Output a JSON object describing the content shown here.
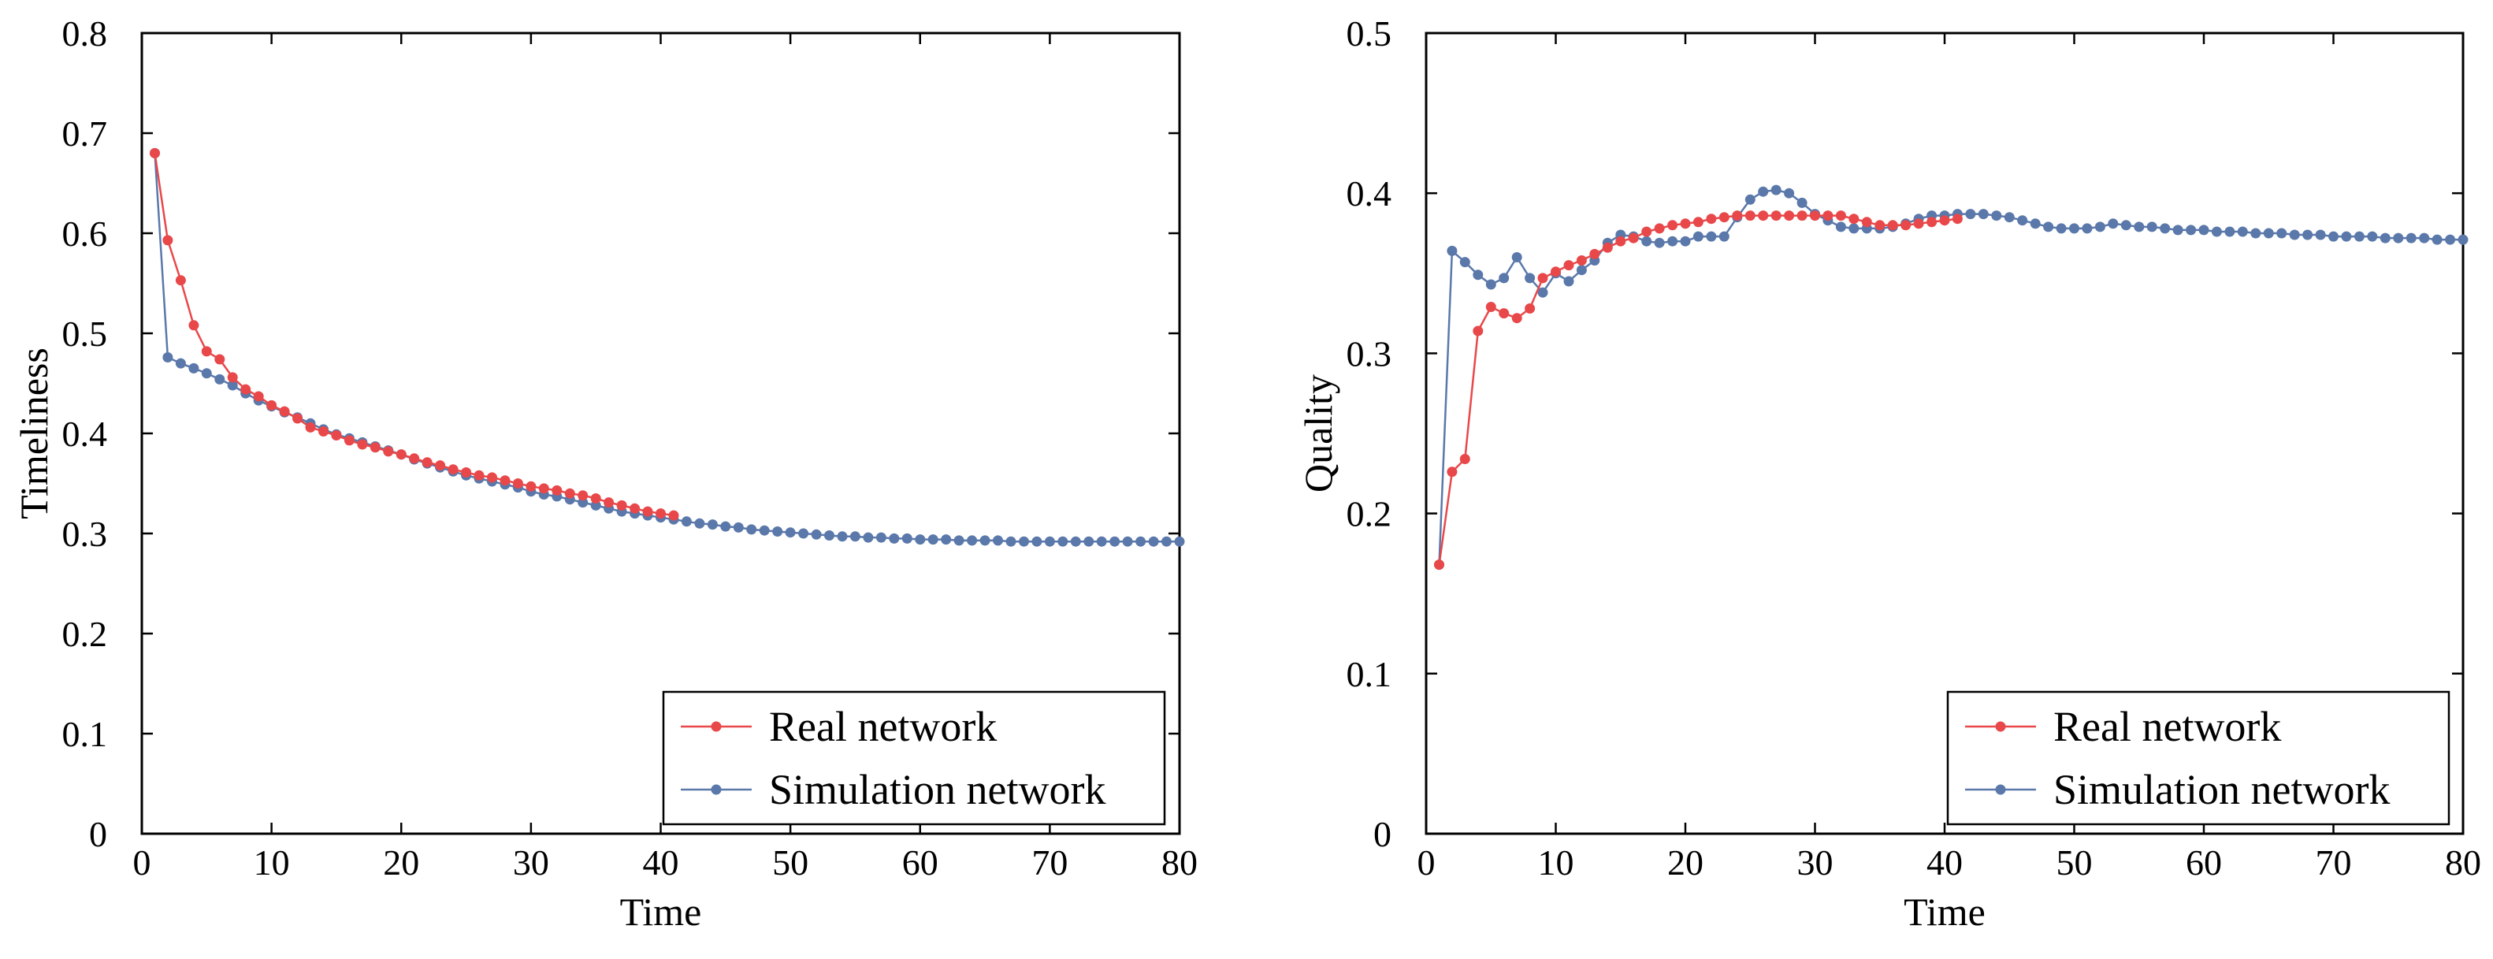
{
  "colors": {
    "real": "#e8484a",
    "simulation": "#5a78aa",
    "axis": "#000000",
    "background": "#ffffff"
  },
  "chart_data": [
    {
      "type": "line",
      "xlabel": "Time",
      "ylabel": "Timeliness",
      "xlim": [
        0,
        80
      ],
      "ylim": [
        0,
        0.8
      ],
      "xticks": [
        0,
        10,
        20,
        30,
        40,
        50,
        60,
        70,
        80
      ],
      "yticks": [
        0,
        0.1,
        0.2,
        0.3,
        0.4,
        0.5,
        0.6,
        0.7,
        0.8
      ],
      "xtick_labels": [
        "0",
        "10",
        "20",
        "30",
        "40",
        "50",
        "60",
        "70",
        "80"
      ],
      "ytick_labels": [
        "0",
        "0.1",
        "0.2",
        "0.3",
        "0.4",
        "0.5",
        "0.6",
        "0.7",
        "0.8"
      ],
      "legend_position": "bottom-right",
      "series": [
        {
          "name": "Real network",
          "color": "#e8484a",
          "x": [
            1,
            2,
            3,
            4,
            5,
            6,
            7,
            8,
            9,
            10,
            11,
            12,
            13,
            14,
            15,
            16,
            17,
            18,
            19,
            20,
            21,
            22,
            23,
            24,
            25,
            26,
            27,
            28,
            29,
            30,
            31,
            32,
            33,
            34,
            35,
            36,
            37,
            38,
            39,
            40,
            41
          ],
          "y": [
            0.68,
            0.593,
            0.553,
            0.508,
            0.482,
            0.474,
            0.456,
            0.444,
            0.437,
            0.428,
            0.422,
            0.415,
            0.406,
            0.402,
            0.398,
            0.393,
            0.389,
            0.386,
            0.382,
            0.379,
            0.375,
            0.371,
            0.368,
            0.364,
            0.361,
            0.358,
            0.356,
            0.353,
            0.35,
            0.347,
            0.345,
            0.343,
            0.34,
            0.338,
            0.335,
            0.331,
            0.328,
            0.325,
            0.322,
            0.32,
            0.318
          ]
        },
        {
          "name": "Simulation network",
          "color": "#5a78aa",
          "x": [
            1,
            2,
            3,
            4,
            5,
            6,
            7,
            8,
            9,
            10,
            11,
            12,
            13,
            14,
            15,
            16,
            17,
            18,
            19,
            20,
            21,
            22,
            23,
            24,
            25,
            26,
            27,
            28,
            29,
            30,
            31,
            32,
            33,
            34,
            35,
            36,
            37,
            38,
            39,
            40,
            41,
            42,
            43,
            44,
            45,
            46,
            47,
            48,
            49,
            50,
            51,
            52,
            53,
            54,
            55,
            56,
            57,
            58,
            59,
            60,
            61,
            62,
            63,
            64,
            65,
            66,
            67,
            68,
            69,
            70,
            71,
            72,
            73,
            74,
            75,
            76,
            77,
            78,
            79,
            80
          ],
          "y": [
            0.68,
            0.476,
            0.47,
            0.465,
            0.46,
            0.454,
            0.448,
            0.44,
            0.433,
            0.427,
            0.421,
            0.416,
            0.41,
            0.404,
            0.399,
            0.395,
            0.391,
            0.387,
            0.383,
            0.379,
            0.374,
            0.37,
            0.366,
            0.362,
            0.358,
            0.355,
            0.352,
            0.349,
            0.346,
            0.342,
            0.339,
            0.337,
            0.334,
            0.331,
            0.328,
            0.325,
            0.322,
            0.32,
            0.318,
            0.316,
            0.314,
            0.312,
            0.31,
            0.309,
            0.307,
            0.306,
            0.304,
            0.303,
            0.302,
            0.301,
            0.3,
            0.299,
            0.298,
            0.297,
            0.297,
            0.296,
            0.296,
            0.295,
            0.295,
            0.294,
            0.294,
            0.294,
            0.293,
            0.293,
            0.293,
            0.293,
            0.292,
            0.292,
            0.292,
            0.292,
            0.292,
            0.292,
            0.292,
            0.292,
            0.292,
            0.292,
            0.292,
            0.292,
            0.292,
            0.292
          ]
        }
      ]
    },
    {
      "type": "line",
      "xlabel": "Time",
      "ylabel": "Quality",
      "xlim": [
        0,
        80
      ],
      "ylim": [
        0,
        0.5
      ],
      "xticks": [
        0,
        10,
        20,
        30,
        40,
        50,
        60,
        70,
        80
      ],
      "yticks": [
        0,
        0.1,
        0.2,
        0.3,
        0.4,
        0.5
      ],
      "xtick_labels": [
        "0",
        "10",
        "20",
        "30",
        "40",
        "50",
        "60",
        "70",
        "80"
      ],
      "ytick_labels": [
        "0",
        "0.1",
        "0.2",
        "0.3",
        "0.4",
        "0.5"
      ],
      "legend_position": "bottom-right",
      "series": [
        {
          "name": "Real network",
          "color": "#e8484a",
          "x": [
            1,
            2,
            3,
            4,
            5,
            6,
            7,
            8,
            9,
            10,
            11,
            12,
            13,
            14,
            15,
            16,
            17,
            18,
            19,
            20,
            21,
            22,
            23,
            24,
            25,
            26,
            27,
            28,
            29,
            30,
            31,
            32,
            33,
            34,
            35,
            36,
            37,
            38,
            39,
            40,
            41
          ],
          "y": [
            0.168,
            0.226,
            0.234,
            0.314,
            0.329,
            0.325,
            0.322,
            0.328,
            0.347,
            0.351,
            0.355,
            0.358,
            0.362,
            0.366,
            0.37,
            0.372,
            0.376,
            0.378,
            0.38,
            0.381,
            0.382,
            0.384,
            0.385,
            0.386,
            0.386,
            0.386,
            0.386,
            0.386,
            0.386,
            0.386,
            0.386,
            0.386,
            0.384,
            0.382,
            0.38,
            0.38,
            0.38,
            0.381,
            0.382,
            0.383,
            0.384
          ]
        },
        {
          "name": "Simulation network",
          "color": "#5a78aa",
          "x": [
            1,
            2,
            3,
            4,
            5,
            6,
            7,
            8,
            9,
            10,
            11,
            12,
            13,
            14,
            15,
            16,
            17,
            18,
            19,
            20,
            21,
            22,
            23,
            24,
            25,
            26,
            27,
            28,
            29,
            30,
            31,
            32,
            33,
            34,
            35,
            36,
            37,
            38,
            39,
            40,
            41,
            42,
            43,
            44,
            45,
            46,
            47,
            48,
            49,
            50,
            51,
            52,
            53,
            54,
            55,
            56,
            57,
            58,
            59,
            60,
            61,
            62,
            63,
            64,
            65,
            66,
            67,
            68,
            69,
            70,
            71,
            72,
            73,
            74,
            75,
            76,
            77,
            78,
            79,
            80
          ],
          "y": [
            0.168,
            0.364,
            0.357,
            0.349,
            0.343,
            0.347,
            0.36,
            0.347,
            0.338,
            0.35,
            0.345,
            0.352,
            0.358,
            0.369,
            0.374,
            0.373,
            0.37,
            0.369,
            0.37,
            0.37,
            0.373,
            0.373,
            0.373,
            0.385,
            0.396,
            0.401,
            0.402,
            0.4,
            0.394,
            0.387,
            0.383,
            0.379,
            0.378,
            0.378,
            0.378,
            0.379,
            0.381,
            0.384,
            0.386,
            0.386,
            0.387,
            0.387,
            0.387,
            0.386,
            0.385,
            0.383,
            0.381,
            0.379,
            0.378,
            0.378,
            0.378,
            0.379,
            0.381,
            0.38,
            0.379,
            0.379,
            0.378,
            0.377,
            0.377,
            0.377,
            0.376,
            0.376,
            0.376,
            0.375,
            0.375,
            0.375,
            0.374,
            0.374,
            0.374,
            0.373,
            0.373,
            0.373,
            0.373,
            0.372,
            0.372,
            0.372,
            0.372,
            0.371,
            0.371,
            0.371
          ]
        }
      ]
    }
  ]
}
